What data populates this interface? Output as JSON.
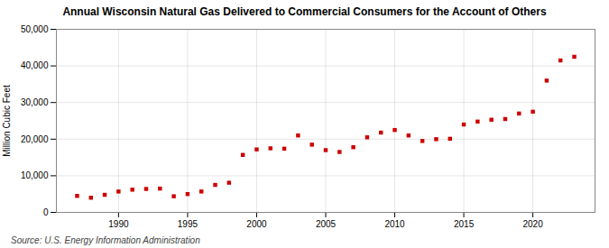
{
  "chart_data": {
    "type": "scatter",
    "title": "Annual Wisconsin Natural Gas Delivered to Commercial Consumers for the Account of Others",
    "ylabel": "Million Cubic Feet",
    "source": "Source: U.S. Energy Information Administration",
    "color": "#cc0000",
    "marker": "square",
    "grid": true,
    "x": [
      1987,
      1988,
      1989,
      1990,
      1991,
      1992,
      1993,
      1994,
      1995,
      1996,
      1997,
      1998,
      1999,
      2000,
      2001,
      2002,
      2003,
      2004,
      2005,
      2006,
      2007,
      2008,
      2009,
      2010,
      2011,
      2012,
      2013,
      2014,
      2015,
      2016,
      2017,
      2018,
      2019,
      2020,
      2021,
      2022,
      2023
    ],
    "values": [
      4500,
      4000,
      4800,
      5700,
      6200,
      6400,
      6500,
      4400,
      5000,
      5700,
      7500,
      8100,
      15700,
      17200,
      17500,
      17400,
      21000,
      18500,
      17000,
      16500,
      17800,
      20500,
      21800,
      22500,
      21000,
      19500,
      20000,
      20100,
      24000,
      24800,
      25300,
      25500,
      27000,
      27500,
      36000,
      41500,
      42500
    ],
    "xlim": [
      1985.5,
      2024.5
    ],
    "xticks": [
      1990,
      1995,
      2000,
      2005,
      2010,
      2015,
      2020
    ],
    "ylim": [
      0,
      50000
    ],
    "yticks": [
      0,
      {
        "value": 10000,
        "label": "10,000"
      },
      {
        "value": 20000,
        "label": "20,000"
      },
      {
        "value": 30000,
        "label": "30,000"
      },
      {
        "value": 40000,
        "label": "40,000"
      },
      {
        "value": 50000,
        "label": "50,000"
      }
    ]
  }
}
